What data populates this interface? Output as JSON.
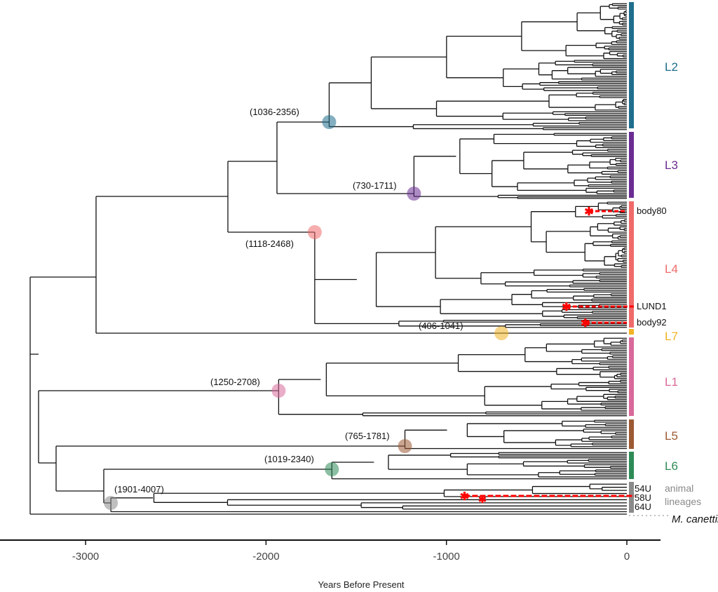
{
  "axis": {
    "label": "Years Before Present",
    "ticks": [
      -3000,
      -2000,
      -1000,
      0
    ],
    "tick_labels": [
      "-3000",
      "-2000",
      "-1000",
      "0"
    ],
    "range": [
      -3330,
      190
    ]
  },
  "lineages": [
    {
      "label": "L2",
      "color": "#1f6e8c"
    },
    {
      "label": "L3",
      "color": "#6a2c91"
    },
    {
      "label": "L4",
      "color": "#f06a6a"
    },
    {
      "label": "L7",
      "color": "#f0b323"
    },
    {
      "label": "L1",
      "color": "#d9699a"
    },
    {
      "label": "L5",
      "color": "#9c5a33"
    },
    {
      "label": "L6",
      "color": "#2e8b57"
    },
    {
      "label": "animal lineages",
      "color": "#8a8a8a"
    }
  ],
  "node_annotations": [
    {
      "label": "(1036-2356)",
      "time": -1650,
      "color": "#1f6e8c"
    },
    {
      "label": "(730-1711)",
      "time": -1180,
      "color": "#6a2c91"
    },
    {
      "label": "(1118-2468)",
      "time": -1730,
      "color": "#f06a6a"
    },
    {
      "label": "(406-1041)",
      "time": -695,
      "color": "#f0b323"
    },
    {
      "label": "(1250-2708)",
      "time": -1930,
      "color": "#d9699a"
    },
    {
      "label": "(765-1781)",
      "time": -1230,
      "color": "#9c5a33"
    },
    {
      "label": "(1019-2340)",
      "time": -1635,
      "color": "#2e8b57"
    },
    {
      "label": "(1901-4007)",
      "time": -2860,
      "color": "#8a8a8a"
    }
  ],
  "ancient_samples": [
    {
      "label": "body80",
      "time": -210
    },
    {
      "label": "LUND1",
      "time": -335
    },
    {
      "label": "body92",
      "time": -230
    },
    {
      "label": "58U",
      "time": -900
    }
  ],
  "animal_tips": [
    "54U",
    "58U",
    "64U"
  ],
  "outgroup": "M. canettii",
  "highlight_color": "#ff0000"
}
